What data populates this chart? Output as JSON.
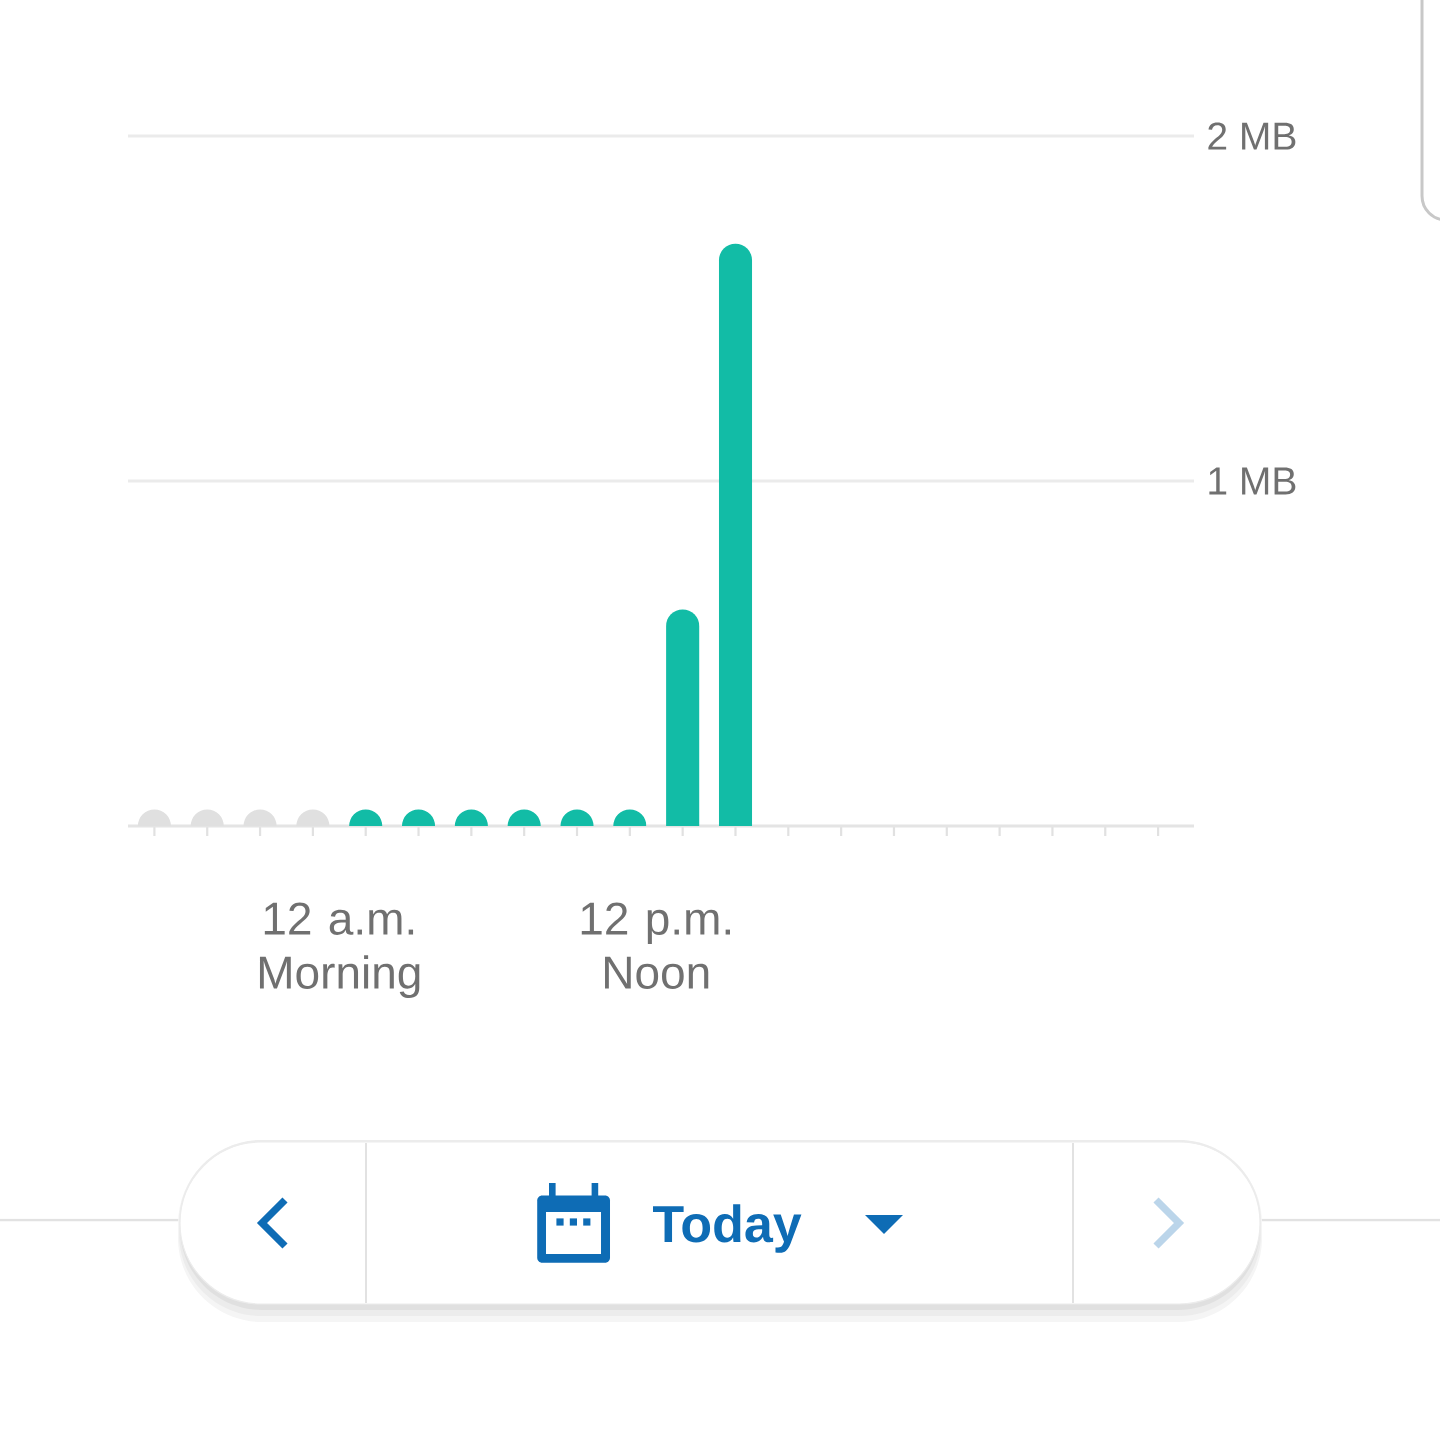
{
  "chart_data": {
    "type": "bar",
    "categories": [
      null,
      null,
      null,
      null,
      "12 a.m. Morning",
      null,
      null,
      null,
      null,
      null,
      "12 p.m. Noon",
      null,
      null,
      null,
      null,
      null,
      null,
      null,
      null,
      null
    ],
    "values": [
      0,
      0,
      0,
      0,
      0,
      0,
      0,
      0,
      0,
      0,
      0.58,
      1.64,
      null,
      null,
      null,
      null,
      null,
      null,
      null,
      null
    ],
    "colors": [
      "#e0e0e0",
      "#e0e0e0",
      "#e0e0e0",
      "#e0e0e0",
      "#12bca6",
      "#12bca6",
      "#12bca6",
      "#12bca6",
      "#12bca6",
      "#12bca6",
      "#12bca6",
      "#12bca6",
      "#12bca6",
      "#12bca6",
      "#12bca6",
      "#12bca6",
      "#12bca6",
      "#12bca6",
      "#12bca6",
      "#12bca6"
    ],
    "ylim": [
      0,
      2
    ],
    "yticks": [
      {
        "value": 1,
        "label": "1 MB"
      },
      {
        "value": 2,
        "label": "2 MB"
      }
    ],
    "grid": "y",
    "annotations": [
      "Today"
    ]
  }
}
